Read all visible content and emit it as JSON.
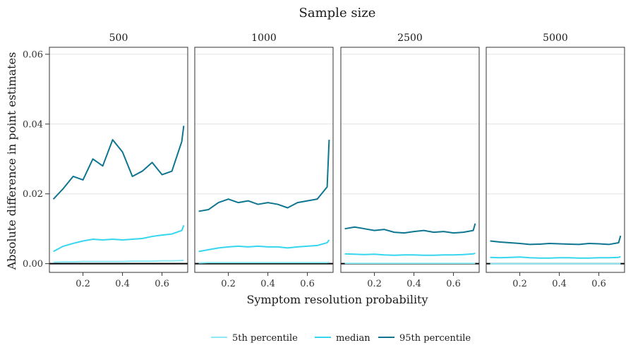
{
  "chart_data": {
    "type": "line",
    "title": "Sample size",
    "xlabel": "Symptom resolution probability",
    "ylabel": "Absolute difference in point estimates",
    "xlim": [
      0.03,
      0.73
    ],
    "ylim": [
      -0.0025,
      0.062
    ],
    "x_ticks": [
      0.2,
      0.4,
      0.6
    ],
    "x_tick_labels": [
      "0.2",
      "0.4",
      "0.6"
    ],
    "y_ticks": [
      0,
      0.02,
      0.04,
      0.06
    ],
    "y_tick_labels": [
      "0.00",
      "0.02",
      "0.04",
      "0.06"
    ],
    "reference_line_y": 0,
    "grid": true,
    "legend_position": "bottom",
    "series_meta": [
      {
        "key": "p5",
        "name": "5th percentile",
        "color": "#8CE9F5"
      },
      {
        "key": "median",
        "name": "median",
        "color": "#36D6EF"
      },
      {
        "key": "p95",
        "name": "95th percentile",
        "color": "#0F7691"
      }
    ],
    "x": [
      0.05,
      0.1,
      0.15,
      0.2,
      0.25,
      0.3,
      0.35,
      0.4,
      0.45,
      0.5,
      0.55,
      0.6,
      0.65,
      0.7,
      0.71
    ],
    "panels": [
      {
        "label": "500",
        "series": {
          "p5": [
            0.0004,
            0.0005,
            0.0005,
            0.0006,
            0.0006,
            0.0006,
            0.0006,
            0.0006,
            0.0007,
            0.0007,
            0.0007,
            0.0008,
            0.0008,
            0.0009,
            0.001
          ],
          "median": [
            0.0035,
            0.005,
            0.0058,
            0.0065,
            0.007,
            0.0068,
            0.007,
            0.0068,
            0.007,
            0.0072,
            0.0078,
            0.0082,
            0.0085,
            0.0095,
            0.011
          ],
          "p95": [
            0.0185,
            0.0215,
            0.025,
            0.024,
            0.03,
            0.028,
            0.0355,
            0.032,
            0.025,
            0.0265,
            0.029,
            0.0255,
            0.0265,
            0.035,
            0.0395
          ]
        }
      },
      {
        "label": "1000",
        "series": {
          "p5": [
            0.0002,
            0.0003,
            0.0003,
            0.0003,
            0.0003,
            0.0003,
            0.0003,
            0.0003,
            0.0003,
            0.0003,
            0.0003,
            0.0003,
            0.0003,
            0.0003,
            0.0004
          ],
          "median": [
            0.0035,
            0.004,
            0.0045,
            0.0048,
            0.005,
            0.0048,
            0.005,
            0.0048,
            0.0048,
            0.0045,
            0.0048,
            0.005,
            0.0052,
            0.006,
            0.0068
          ],
          "p95": [
            0.015,
            0.0155,
            0.0175,
            0.0185,
            0.0175,
            0.018,
            0.017,
            0.0175,
            0.017,
            0.016,
            0.0175,
            0.018,
            0.0185,
            0.022,
            0.0355
          ]
        }
      },
      {
        "label": "2500",
        "series": {
          "p5": [
            0.0001,
            0.0001,
            0.0001,
            0.0001,
            0.0001,
            0.0001,
            0.0001,
            0.0001,
            0.0001,
            0.0001,
            0.0001,
            0.0001,
            0.0001,
            0.0001,
            0.0001
          ],
          "median": [
            0.0028,
            0.0027,
            0.0026,
            0.0027,
            0.0025,
            0.0024,
            0.0025,
            0.0025,
            0.0024,
            0.0024,
            0.0025,
            0.0025,
            0.0026,
            0.0028,
            0.003
          ],
          "p95": [
            0.01,
            0.0105,
            0.01,
            0.0095,
            0.0098,
            0.009,
            0.0088,
            0.0092,
            0.0095,
            0.009,
            0.0092,
            0.0088,
            0.009,
            0.0095,
            0.0115
          ]
        }
      },
      {
        "label": "5000",
        "series": {
          "p5": [
            0.0,
            0.0,
            0.0,
            0.0,
            0.0,
            0.0,
            0.0,
            0.0,
            0.0,
            0.0,
            0.0,
            0.0,
            0.0,
            0.0,
            0.0
          ],
          "median": [
            0.0018,
            0.0017,
            0.0018,
            0.0019,
            0.0017,
            0.0016,
            0.0016,
            0.0017,
            0.0017,
            0.0016,
            0.0016,
            0.0017,
            0.0017,
            0.0018,
            0.002
          ],
          "p95": [
            0.0065,
            0.0062,
            0.006,
            0.0058,
            0.0055,
            0.0056,
            0.0058,
            0.0057,
            0.0056,
            0.0055,
            0.0058,
            0.0057,
            0.0055,
            0.006,
            0.008
          ]
        }
      }
    ]
  }
}
